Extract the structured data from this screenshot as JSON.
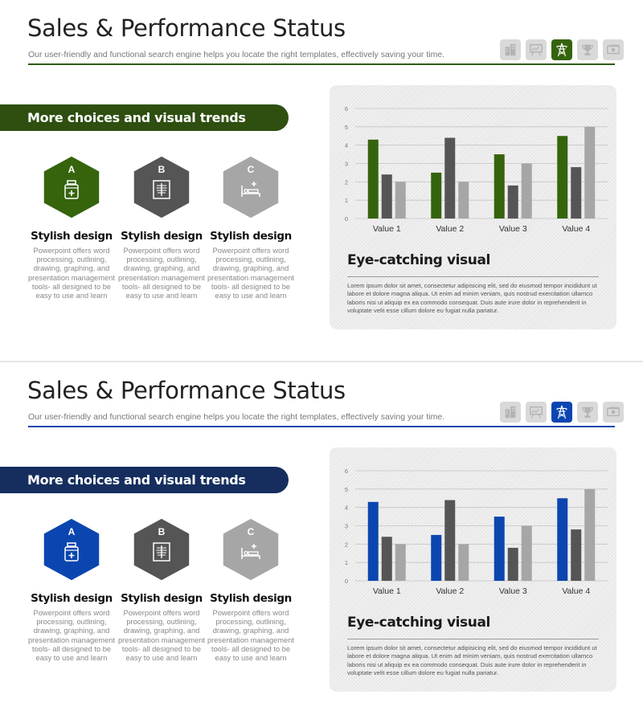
{
  "slides": [
    {
      "theme": "green",
      "title": "Sales & Performance Status",
      "subtitle": "Our user-friendly and functional search engine helps you locate the right templates, effectively saving your time.",
      "accent_color": "#35640d",
      "banner_color": "#2e4f10",
      "icon_bar": [
        "buildings-icon",
        "presentation-board-icon",
        "power-tower-icon",
        "trophy-icon",
        "money-icon"
      ],
      "active_icon": "power-tower-icon",
      "banner": "More choices and visual trends",
      "features": [
        {
          "letter": "A",
          "icon": "medicine-bottle-icon",
          "color": "#35640d",
          "title": "Stylish design",
          "desc": "Powerpoint offers word processing, outlining, drawing, graphing, and presentation management tools- all designed to be easy to use and learn"
        },
        {
          "letter": "B",
          "icon": "xray-icon",
          "color": "#555555",
          "title": "Stylish design",
          "desc": "Powerpoint offers word processing, outlining, drawing, graphing, and presentation management tools- all designed to be easy to use and learn"
        },
        {
          "letter": "C",
          "icon": "hospital-bed-icon",
          "color": "#a6a6a6",
          "title": "Stylish design",
          "desc": "Powerpoint offers word processing, outlining, drawing, graphing, and presentation management tools- all designed to be easy to use and learn"
        }
      ],
      "card": {
        "title": "Eye-catching visual",
        "text": "Lorem ipsum dolor sit amet, consectetur adipisicing elit, sed do eiusmod tempor incididunt ut labore et dolore magna aliqua. Ut enim ad minim veniam, quis nostrud exercitation ullamco laboris nisi ut aliquip ex ea commodo consequat. Duis aute irure dolor in reprehenderit in voluptate velit esse cillum dolore eu fugiat nulla pariatur."
      },
      "chart_data": {
        "type": "bar",
        "categories": [
          "Value 1",
          "Value 2",
          "Value 3",
          "Value 4"
        ],
        "series": [
          {
            "values": [
              4.3,
              2.5,
              3.5,
              4.5
            ],
            "color": "#35640d"
          },
          {
            "values": [
              2.4,
              4.4,
              1.8,
              2.8
            ],
            "color": "#555555"
          },
          {
            "values": [
              2.0,
              2.0,
              3.0,
              5.0
            ],
            "color": "#a6a6a6"
          }
        ],
        "yticks": [
          "0",
          "1",
          "2",
          "3",
          "4",
          "5",
          "6"
        ],
        "ylim": [
          0,
          6
        ],
        "grid": true,
        "legend": "none"
      }
    },
    {
      "theme": "blue",
      "title": "Sales & Performance Status",
      "subtitle": "Our user-friendly and functional search engine helps you locate the right templates, effectively saving your time.",
      "accent_color": "#0b46b0",
      "banner_color": "#152e5e",
      "icon_bar": [
        "buildings-icon",
        "presentation-board-icon",
        "power-tower-icon",
        "trophy-icon",
        "money-icon"
      ],
      "active_icon": "power-tower-icon",
      "banner": "More choices and visual trends",
      "features": [
        {
          "letter": "A",
          "icon": "medicine-bottle-icon",
          "color": "#0b46b0",
          "title": "Stylish design",
          "desc": "Powerpoint offers word processing, outlining, drawing, graphing, and presentation management tools- all designed to be easy to use and learn"
        },
        {
          "letter": "B",
          "icon": "xray-icon",
          "color": "#555555",
          "title": "Stylish design",
          "desc": "Powerpoint offers word processing, outlining, drawing, graphing, and presentation management tools- all designed to be easy to use and learn"
        },
        {
          "letter": "C",
          "icon": "hospital-bed-icon",
          "color": "#a6a6a6",
          "title": "Stylish design",
          "desc": "Powerpoint offers word processing, outlining, drawing, graphing, and presentation management tools- all designed to be easy to use and learn"
        }
      ],
      "card": {
        "title": "Eye-catching visual",
        "text": "Lorem ipsum dolor sit amet, consectetur adipisicing elit, sed do eiusmod tempor incididunt ut labore et dolore magna aliqua. Ut enim ad minim veniam, quis nostrud exercitation ullamco laboris nisi ut aliquip ex ea commodo consequat. Duis aute irure dolor in reprehenderit in voluptate velit esse cillum dolore eu fugiat nulla pariatur."
      },
      "chart_data": {
        "type": "bar",
        "categories": [
          "Value 1",
          "Value 2",
          "Value 3",
          "Value 4"
        ],
        "series": [
          {
            "values": [
              4.3,
              2.5,
              3.5,
              4.5
            ],
            "color": "#0b46b0"
          },
          {
            "values": [
              2.4,
              4.4,
              1.8,
              2.8
            ],
            "color": "#555555"
          },
          {
            "values": [
              2.0,
              2.0,
              3.0,
              5.0
            ],
            "color": "#a6a6a6"
          }
        ],
        "yticks": [
          "0",
          "1",
          "2",
          "3",
          "4",
          "5",
          "6"
        ],
        "ylim": [
          0,
          6
        ],
        "grid": true,
        "legend": "none"
      }
    }
  ]
}
